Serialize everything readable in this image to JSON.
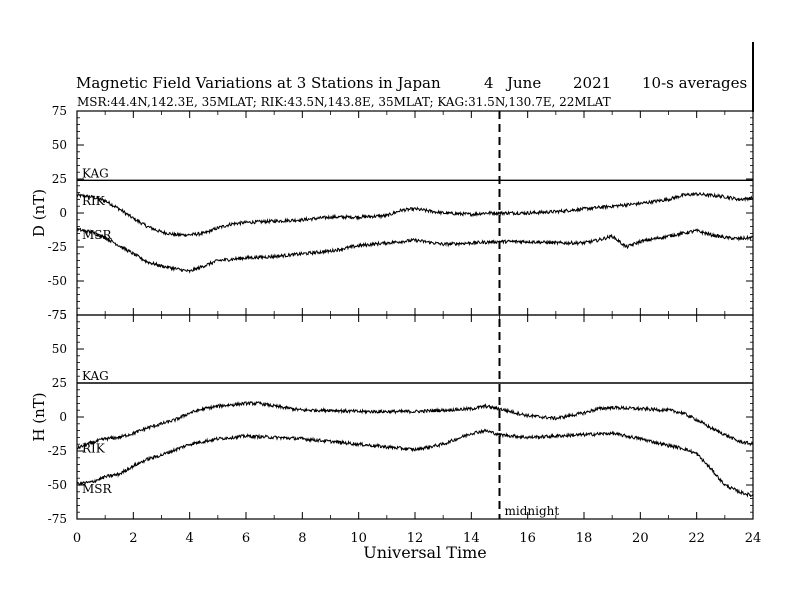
{
  "title": "Magnetic Field Variations at 3 Stations in Japan",
  "date_day": "4",
  "date_month": "June",
  "date_year": "2021",
  "averaging": "10-s averages",
  "stations_line": "MSR:44.4N,142.3E, 35MLAT;  RIK:43.5N,143.8E, 35MLAT;  KAG:31.5N,130.7E, 22MLAT",
  "xlabel": "Universal Time",
  "midnight_label": "midnight",
  "chart_data": [
    {
      "type": "line",
      "panel": "D",
      "ylabel": "D (nT)",
      "ylim": [
        -75,
        75
      ],
      "yticks": [
        75,
        50,
        25,
        0,
        -25,
        -50,
        -75
      ],
      "xlim": [
        0,
        24
      ],
      "xticks": [
        0,
        2,
        4,
        6,
        8,
        10,
        12,
        14,
        16,
        18,
        20,
        22,
        24
      ],
      "vline_x": 15,
      "series": [
        {
          "name": "KAG",
          "x": [
            0,
            24
          ],
          "values": [
            24,
            24
          ]
        },
        {
          "name": "RIK",
          "x": [
            0,
            0.5,
            1,
            1.5,
            2,
            2.5,
            3,
            3.5,
            4,
            4.5,
            5,
            5.5,
            6,
            7,
            8,
            9,
            10,
            11,
            11.5,
            12,
            13,
            14,
            14.5,
            15,
            16,
            17,
            18,
            19,
            20,
            21,
            21.5,
            22,
            22.5,
            23,
            23.5,
            24
          ],
          "values": [
            13,
            12,
            9,
            3,
            -4,
            -10,
            -14,
            -16,
            -16,
            -15,
            -11,
            -8,
            -7,
            -6,
            -5,
            -3,
            -3,
            -2,
            2,
            3,
            0,
            -1,
            0,
            0,
            0,
            1,
            3,
            5,
            7,
            10,
            13,
            14,
            13,
            12,
            10,
            11
          ]
        },
        {
          "name": "MSR",
          "x": [
            0,
            0.5,
            1,
            1.5,
            2,
            2.5,
            3,
            3.5,
            4,
            4.5,
            5,
            5.5,
            6,
            7,
            8,
            9,
            10,
            11,
            12,
            13,
            14,
            15,
            16,
            17,
            18,
            18.5,
            19,
            19.5,
            20,
            21,
            22,
            22.5,
            23,
            23.5,
            24
          ],
          "values": [
            -12,
            -14,
            -18,
            -24,
            -30,
            -36,
            -39,
            -41,
            -43,
            -39,
            -35,
            -34,
            -33,
            -32,
            -30,
            -28,
            -24,
            -22,
            -20,
            -23,
            -22,
            -21,
            -21,
            -22,
            -22,
            -20,
            -17,
            -25,
            -21,
            -17,
            -13,
            -16,
            -18,
            -19,
            -18
          ]
        }
      ]
    },
    {
      "type": "line",
      "panel": "H",
      "ylabel": "H (nT)",
      "ylim": [
        -75,
        75
      ],
      "yticks": [
        75,
        50,
        25,
        0,
        -25,
        -50,
        -75
      ],
      "xlim": [
        0,
        24
      ],
      "xticks": [
        0,
        2,
        4,
        6,
        8,
        10,
        12,
        14,
        16,
        18,
        20,
        22,
        24
      ],
      "vline_x": 15,
      "series": [
        {
          "name": "KAG",
          "x": [
            0,
            24
          ],
          "values": [
            25,
            25
          ]
        },
        {
          "name": "RIK",
          "x": [
            0,
            0.5,
            1,
            1.5,
            2,
            2.5,
            3,
            3.5,
            4,
            4.5,
            5,
            5.5,
            6,
            6.5,
            7,
            8,
            9,
            10,
            11,
            12,
            13,
            14,
            14.5,
            15,
            16,
            17,
            18,
            18.5,
            19,
            20,
            21,
            21.5,
            22,
            22.5,
            23,
            23.5,
            24
          ],
          "values": [
            -23,
            -19,
            -16,
            -15,
            -12,
            -8,
            -5,
            -2,
            3,
            6,
            8,
            9,
            10,
            10,
            8,
            5,
            5,
            4,
            4,
            4,
            5,
            6,
            8,
            6,
            1,
            -1,
            3,
            6,
            7,
            6,
            5,
            3,
            -2,
            -8,
            -13,
            -18,
            -20
          ]
        },
        {
          "name": "MSR",
          "x": [
            0,
            0.5,
            1,
            1.5,
            2,
            2.5,
            3,
            3.5,
            4,
            4.5,
            5,
            5.5,
            6,
            7,
            8,
            9,
            10,
            11,
            12,
            13,
            14,
            14.5,
            15,
            16,
            17,
            18,
            19,
            20,
            21,
            21.5,
            22,
            22.5,
            23,
            23.5,
            24
          ],
          "values": [
            -49,
            -48,
            -44,
            -42,
            -36,
            -31,
            -28,
            -24,
            -20,
            -18,
            -16,
            -15,
            -14,
            -15,
            -16,
            -18,
            -20,
            -22,
            -24,
            -20,
            -12,
            -10,
            -13,
            -15,
            -14,
            -13,
            -12,
            -16,
            -21,
            -23,
            -27,
            -38,
            -50,
            -55,
            -58
          ]
        }
      ]
    }
  ]
}
